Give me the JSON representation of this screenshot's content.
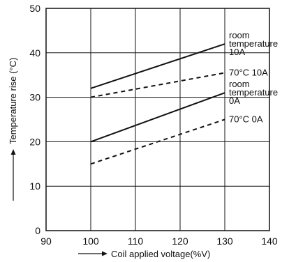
{
  "chart_data": {
    "type": "line",
    "title": "",
    "xlabel": "Coil applied voltage(%V)",
    "ylabel": "Temperature rise (°C)",
    "xlim": [
      90,
      140
    ],
    "ylim": [
      0,
      50
    ],
    "x_ticks": [
      90,
      100,
      110,
      120,
      130,
      140
    ],
    "y_ticks": [
      0,
      10,
      20,
      30,
      40,
      50
    ],
    "grid": true,
    "legend": "none",
    "series": [
      {
        "name": "room temperature 10A",
        "style": "solid",
        "x": [
          100,
          130
        ],
        "y": [
          32,
          42
        ],
        "label_lines": [
          "room",
          "temperature",
          "10A"
        ]
      },
      {
        "name": "70°C 10A",
        "style": "dashed",
        "x": [
          100,
          130
        ],
        "y": [
          30,
          35.5
        ],
        "label_lines": [
          "70°C 10A"
        ]
      },
      {
        "name": "room temperature 0A",
        "style": "solid",
        "x": [
          100,
          130
        ],
        "y": [
          20,
          31
        ],
        "label_lines": [
          "room",
          "temperature",
          "0A"
        ]
      },
      {
        "name": "70°C 0A",
        "style": "dashed",
        "x": [
          100,
          130
        ],
        "y": [
          15,
          25
        ],
        "label_lines": [
          "70°C 0A"
        ]
      }
    ]
  }
}
